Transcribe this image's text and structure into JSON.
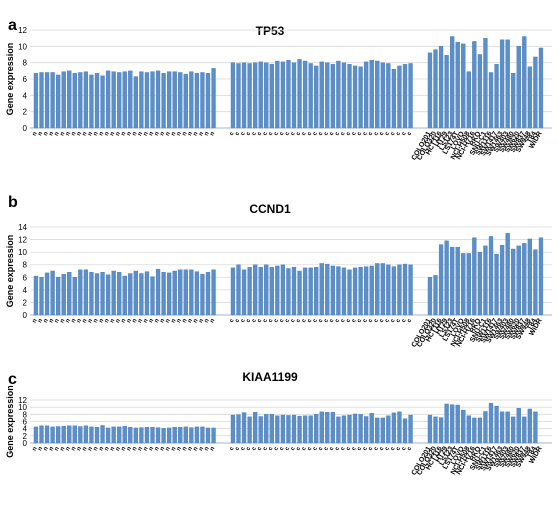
{
  "chart_data": [
    {
      "type": "bar",
      "panel": "a",
      "title": "TP53",
      "ylabel": "Gene expression",
      "ylim": [
        0,
        12
      ],
      "yticks": [
        0,
        2,
        4,
        6,
        8,
        10,
        12
      ],
      "grid": true,
      "color": "#5b8fc7",
      "groups": [
        {
          "categories": [
            "n",
            "n",
            "n",
            "n",
            "n",
            "n",
            "n",
            "n",
            "n",
            "n",
            "n",
            "n",
            "n",
            "n",
            "n",
            "n",
            "n",
            "n",
            "n",
            "n",
            "n",
            "n",
            "n",
            "n",
            "n",
            "n",
            "n",
            "n",
            "n",
            "n",
            "n",
            "n",
            "n"
          ],
          "values": [
            6.7,
            6.8,
            6.8,
            6.8,
            6.5,
            6.9,
            7.0,
            6.7,
            6.8,
            6.9,
            6.5,
            6.7,
            6.4,
            7.0,
            6.9,
            6.8,
            6.9,
            7.0,
            6.3,
            6.9,
            6.8,
            6.9,
            7.0,
            6.7,
            6.9,
            6.9,
            6.8,
            6.6,
            6.9,
            6.7,
            6.8,
            6.7,
            7.3
          ]
        },
        {
          "categories": [
            "c",
            "c",
            "c",
            "c",
            "c",
            "c",
            "c",
            "c",
            "c",
            "c",
            "c",
            "c",
            "c",
            "c",
            "c",
            "c",
            "c",
            "c",
            "c",
            "c",
            "c",
            "c",
            "c",
            "c",
            "c",
            "c",
            "c",
            "c",
            "c",
            "c",
            "c",
            "c",
            "c"
          ],
          "values": [
            8.0,
            7.9,
            8.0,
            7.9,
            8.0,
            8.1,
            8.0,
            7.8,
            8.2,
            8.1,
            8.3,
            8.0,
            8.4,
            8.2,
            7.9,
            7.6,
            8.1,
            8.0,
            7.8,
            8.2,
            8.0,
            7.8,
            7.6,
            7.5,
            8.1,
            8.3,
            8.2,
            8.0,
            7.9,
            7.2,
            7.6,
            7.8,
            7.9
          ]
        },
        {
          "categories": [
            "COLO201",
            "COLO320",
            "HCT116",
            "HT29",
            "LS123",
            "LS174T",
            "LOVO",
            "NCI-H508",
            "NCI-H716",
            "RKO",
            "SNU-C1",
            "SW1116",
            "SW1417",
            "SW1463",
            "SW403",
            "SW480",
            "SW620",
            "SW837",
            "SW948",
            "T84",
            "WiDR"
          ],
          "values": [
            9.2,
            9.6,
            10.0,
            8.9,
            11.2,
            10.5,
            10.3,
            6.9,
            10.6,
            9.0,
            11.0,
            6.8,
            7.8,
            10.8,
            10.8,
            6.7,
            10.0,
            11.2,
            7.5,
            8.7,
            9.8
          ]
        }
      ]
    },
    {
      "type": "bar",
      "panel": "b",
      "title": "CCND1",
      "ylabel": "Gene expression",
      "ylim": [
        0,
        14
      ],
      "yticks": [
        0,
        2,
        4,
        6,
        8,
        10,
        12,
        14
      ],
      "grid": true,
      "color": "#5b8fc7",
      "groups": [
        {
          "categories": [
            "n",
            "n",
            "n",
            "n",
            "n",
            "n",
            "n",
            "n",
            "n",
            "n",
            "n",
            "n",
            "n",
            "n",
            "n",
            "n",
            "n",
            "n",
            "n",
            "n",
            "n",
            "n",
            "n",
            "n",
            "n",
            "n",
            "n",
            "n",
            "n",
            "n",
            "n",
            "n",
            "n"
          ],
          "values": [
            6.2,
            6.0,
            6.7,
            7.0,
            6.0,
            6.5,
            6.8,
            6.0,
            7.2,
            7.2,
            6.8,
            6.6,
            6.8,
            6.4,
            7.0,
            6.8,
            6.2,
            6.6,
            7.0,
            6.6,
            6.9,
            6.1,
            7.3,
            6.8,
            6.7,
            7.0,
            7.2,
            7.2,
            7.2,
            6.9,
            6.5,
            6.8,
            7.2
          ]
        },
        {
          "categories": [
            "c",
            "c",
            "c",
            "c",
            "c",
            "c",
            "c",
            "c",
            "c",
            "c",
            "c",
            "c",
            "c",
            "c",
            "c",
            "c",
            "c",
            "c",
            "c",
            "c",
            "c",
            "c",
            "c",
            "c",
            "c",
            "c",
            "c",
            "c",
            "c",
            "c",
            "c",
            "c",
            "c"
          ],
          "values": [
            7.5,
            8.0,
            7.2,
            7.6,
            8.0,
            7.6,
            8.0,
            7.6,
            7.8,
            8.0,
            7.4,
            7.6,
            7.0,
            7.5,
            7.5,
            7.6,
            8.2,
            8.1,
            7.8,
            7.7,
            7.5,
            7.2,
            7.5,
            7.6,
            7.7,
            7.8,
            8.2,
            8.2,
            8.0,
            7.7,
            8.0,
            8.1,
            8.0
          ]
        },
        {
          "categories": [
            "COLO201",
            "COLO320",
            "HCT116",
            "HT29",
            "LS123",
            "LS174T",
            "LOVO",
            "NCI-H508",
            "NCI-H716",
            "RKO",
            "SNU-C1",
            "SW1116",
            "SW1417",
            "SW1463",
            "SW403",
            "SW480",
            "SW620",
            "SW837",
            "SW948",
            "T84",
            "WiDR"
          ],
          "values": [
            6.0,
            6.3,
            11.2,
            11.8,
            10.8,
            10.8,
            9.8,
            9.8,
            12.3,
            10.0,
            11.0,
            12.5,
            9.7,
            11.1,
            13.0,
            10.5,
            11.0,
            11.4,
            12.1,
            10.4,
            12.3
          ]
        }
      ]
    },
    {
      "type": "bar",
      "panel": "c",
      "title": "KIAA1199",
      "ylabel": "Gene expression",
      "ylim": [
        0,
        12
      ],
      "yticks": [
        0,
        2,
        4,
        6,
        8,
        10,
        12
      ],
      "grid": true,
      "color": "#5b8fc7",
      "groups": [
        {
          "categories": [
            "n",
            "n",
            "n",
            "n",
            "n",
            "n",
            "n",
            "n",
            "n",
            "n",
            "n",
            "n",
            "n",
            "n",
            "n",
            "n",
            "n",
            "n",
            "n",
            "n",
            "n",
            "n",
            "n",
            "n",
            "n",
            "n",
            "n",
            "n",
            "n",
            "n",
            "n",
            "n",
            "n"
          ],
          "values": [
            4.5,
            4.8,
            4.8,
            4.5,
            4.6,
            4.7,
            4.8,
            4.8,
            4.6,
            4.8,
            4.5,
            4.4,
            4.9,
            4.2,
            4.5,
            4.5,
            4.7,
            4.4,
            4.2,
            4.3,
            4.4,
            4.4,
            4.3,
            4.1,
            4.2,
            4.4,
            4.4,
            4.5,
            4.3,
            4.5,
            4.5,
            4.2,
            4.2
          ]
        },
        {
          "categories": [
            "c",
            "c",
            "c",
            "c",
            "c",
            "c",
            "c",
            "c",
            "c",
            "c",
            "c",
            "c",
            "c",
            "c",
            "c",
            "c",
            "c",
            "c",
            "c",
            "c",
            "c",
            "c",
            "c",
            "c",
            "c",
            "c",
            "c",
            "c",
            "c",
            "c",
            "c",
            "c",
            "c"
          ],
          "values": [
            7.8,
            7.9,
            8.5,
            7.3,
            8.6,
            7.4,
            8.0,
            8.0,
            7.6,
            7.8,
            7.7,
            7.8,
            7.5,
            7.6,
            7.6,
            8.0,
            8.7,
            8.6,
            8.6,
            7.3,
            7.6,
            7.8,
            8.1,
            8.0,
            7.4,
            8.3,
            7.0,
            7.0,
            7.6,
            8.4,
            8.7,
            6.8,
            7.8
          ]
        },
        {
          "categories": [
            "COLO201",
            "COLO320",
            "HCT116",
            "HT29",
            "LS123",
            "LS174T",
            "LOVO",
            "NCI-H508",
            "NCI-H716",
            "RKO",
            "SNU-C1",
            "SW1116",
            "SW1417",
            "SW1463",
            "SW403",
            "SW480",
            "SW620",
            "SW837",
            "SW948",
            "T84",
            "WiDR"
          ],
          "values": [
            7.8,
            7.3,
            7.1,
            10.9,
            10.7,
            10.6,
            9.2,
            7.6,
            7.0,
            7.0,
            8.8,
            11.1,
            10.3,
            8.7,
            8.7,
            7.3,
            9.7,
            7.3,
            9.5,
            8.7,
            0
          ]
        }
      ]
    }
  ]
}
